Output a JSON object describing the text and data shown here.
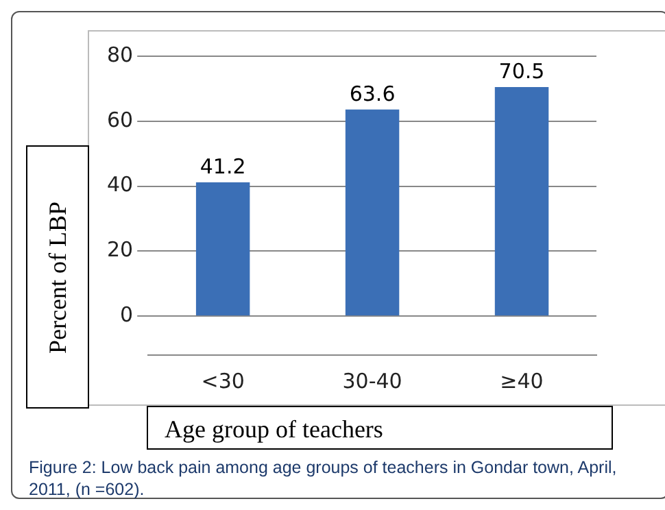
{
  "chart_data": {
    "type": "bar",
    "xlabel": "Age group of teachers",
    "ylabel": "Percent of LBP",
    "categories": [
      "<30",
      "30-40",
      "≥40"
    ],
    "values": [
      41.2,
      63.6,
      70.5
    ],
    "color": "#3b6fb6",
    "ylim": [
      -12,
      80
    ],
    "yticks": [
      0,
      20,
      40,
      60,
      80
    ],
    "grid": "y",
    "data_labels": true,
    "legend": false,
    "annotations": [
      "Figure 2: Low back pain among age groups of teachers in Gondar town, April, 2011, (n =602)."
    ]
  }
}
